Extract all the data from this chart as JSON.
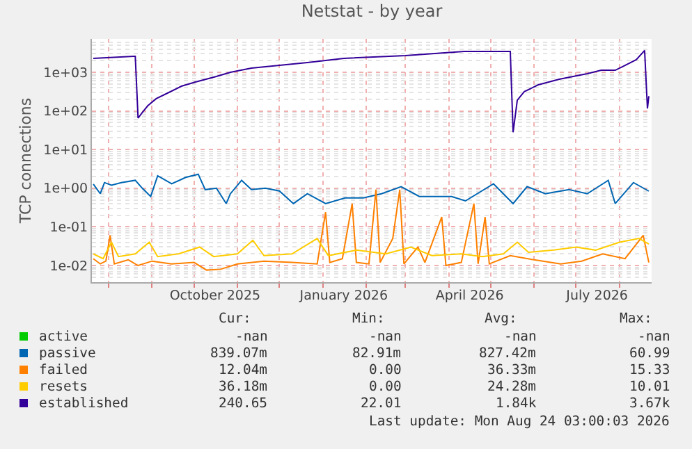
{
  "chart_data": {
    "type": "line",
    "title": "Netstat - by year",
    "ylabel": "TCP connections",
    "log": "y",
    "grid": true,
    "legend": "bottom",
    "marker": "none",
    "line_style": "solid",
    "ylim": [
      0.0037,
      7300
    ],
    "yticks": [
      {
        "value": 0.01,
        "label": "1e-02"
      },
      {
        "value": 0.1,
        "label": "1e-01"
      },
      {
        "value": 1,
        "label": "1e+00"
      },
      {
        "value": 10,
        "label": "1e+01"
      },
      {
        "value": 100,
        "label": "1e+02"
      },
      {
        "value": 1000,
        "label": "1e+03"
      }
    ],
    "xlim": [
      "2025-07-20",
      "2026-08-24"
    ],
    "xticks": [
      {
        "value": "2025-08-01",
        "label": null
      },
      {
        "value": "2025-09-01",
        "label": null
      },
      {
        "value": "2025-10-01",
        "label": null
      },
      {
        "value": "2025-10-16",
        "label": "October 2025"
      },
      {
        "value": "2025-11-01",
        "label": null
      },
      {
        "value": "2025-12-01",
        "label": null
      },
      {
        "value": "2026-01-01",
        "label": null
      },
      {
        "value": "2026-01-16",
        "label": "January 2026"
      },
      {
        "value": "2026-02-01",
        "label": null
      },
      {
        "value": "2026-03-01",
        "label": null
      },
      {
        "value": "2026-04-01",
        "label": null
      },
      {
        "value": "2026-04-16",
        "label": "April 2026"
      },
      {
        "value": "2026-05-01",
        "label": null
      },
      {
        "value": "2026-06-01",
        "label": null
      },
      {
        "value": "2026-07-01",
        "label": null
      },
      {
        "value": "2026-07-16",
        "label": "July 2026"
      },
      {
        "value": "2026-08-01",
        "label": null
      }
    ],
    "series": [
      {
        "name": "active",
        "color": "#00cc00"
      },
      {
        "name": "passive",
        "color": "#0066b3",
        "x": [
          "2025-07-21",
          "2025-07-26",
          "2025-07-29",
          "2025-08-03",
          "2025-08-10",
          "2025-08-20",
          "2025-08-25",
          "2025-08-31",
          "2025-09-05",
          "2025-09-15",
          "2025-09-25",
          "2025-10-04",
          "2025-10-09",
          "2025-10-17",
          "2025-10-24",
          "2025-10-27",
          "2025-11-04",
          "2025-11-11",
          "2025-11-21",
          "2025-12-01",
          "2025-12-11",
          "2025-12-21",
          "2026-01-03",
          "2026-01-17",
          "2026-01-30",
          "2026-02-12",
          "2026-02-26",
          "2026-03-11",
          "2026-04-03",
          "2026-04-13",
          "2026-05-03",
          "2026-05-17",
          "2026-05-27",
          "2026-06-09",
          "2026-06-26",
          "2026-07-09",
          "2026-07-24",
          "2026-07-29",
          "2026-08-11",
          "2026-08-22"
        ],
        "values": [
          1.28,
          0.72,
          1.4,
          1.2,
          1.4,
          1.6,
          1.0,
          0.61,
          2.1,
          1.3,
          1.9,
          2.3,
          0.92,
          1.0,
          0.4,
          0.72,
          1.6,
          0.92,
          1.0,
          0.85,
          0.4,
          0.72,
          0.4,
          0.56,
          0.56,
          0.72,
          1.1,
          0.61,
          0.61,
          0.47,
          1.3,
          0.4,
          1.1,
          0.72,
          0.92,
          0.72,
          1.6,
          0.4,
          1.4,
          0.84
        ]
      },
      {
        "name": "failed",
        "color": "#ff8000",
        "x": [
          "2025-07-21",
          "2025-07-26",
          "2025-07-30",
          "2025-08-02",
          "2025-08-05",
          "2025-08-15",
          "2025-08-22",
          "2025-09-01",
          "2025-09-15",
          "2025-10-01",
          "2025-10-10",
          "2025-10-20",
          "2025-11-01",
          "2025-11-20",
          "2025-12-10",
          "2025-12-28",
          "2026-01-03",
          "2026-01-06",
          "2026-01-15",
          "2026-01-22",
          "2026-01-25",
          "2026-02-03",
          "2026-02-08",
          "2026-02-11",
          "2026-02-20",
          "2026-02-25",
          "2026-02-28",
          "2026-03-10",
          "2026-03-15",
          "2026-03-27",
          "2026-03-30",
          "2026-04-10",
          "2026-04-19",
          "2026-04-22",
          "2026-04-27",
          "2026-04-30",
          "2026-05-15",
          "2026-06-01",
          "2026-06-20",
          "2026-07-05",
          "2026-07-20",
          "2026-08-05",
          "2026-08-18",
          "2026-08-22"
        ],
        "values": [
          0.015,
          0.011,
          0.013,
          0.06,
          0.011,
          0.014,
          0.01,
          0.013,
          0.011,
          0.012,
          0.0076,
          0.008,
          0.011,
          0.013,
          0.012,
          0.011,
          0.24,
          0.012,
          0.015,
          0.4,
          0.012,
          0.011,
          0.92,
          0.012,
          0.05,
          0.92,
          0.011,
          0.03,
          0.012,
          0.18,
          0.01,
          0.012,
          0.4,
          0.011,
          0.18,
          0.011,
          0.018,
          0.014,
          0.011,
          0.013,
          0.02,
          0.015,
          0.06,
          0.012
        ]
      },
      {
        "name": "resets",
        "color": "#ffcc00",
        "x": [
          "2025-07-21",
          "2025-07-28",
          "2025-08-03",
          "2025-08-08",
          "2025-08-20",
          "2025-08-30",
          "2025-09-05",
          "2025-09-20",
          "2025-10-05",
          "2025-10-15",
          "2025-11-01",
          "2025-11-12",
          "2025-11-20",
          "2025-12-10",
          "2025-12-28",
          "2026-01-05",
          "2026-01-25",
          "2026-02-15",
          "2026-03-05",
          "2026-03-20",
          "2026-04-10",
          "2026-04-25",
          "2026-05-10",
          "2026-05-20",
          "2026-05-28",
          "2026-06-15",
          "2026-07-01",
          "2026-07-15",
          "2026-08-01",
          "2026-08-15",
          "2026-08-22"
        ],
        "values": [
          0.02,
          0.015,
          0.04,
          0.017,
          0.02,
          0.04,
          0.017,
          0.02,
          0.03,
          0.017,
          0.02,
          0.045,
          0.018,
          0.02,
          0.05,
          0.018,
          0.025,
          0.02,
          0.03,
          0.018,
          0.02,
          0.017,
          0.02,
          0.04,
          0.022,
          0.025,
          0.03,
          0.025,
          0.04,
          0.05,
          0.036
        ]
      },
      {
        "name": "established",
        "color": "#330099",
        "x": [
          "2025-07-21",
          "2025-08-19",
          "2025-08-20",
          "2025-08-22",
          "2025-08-25",
          "2025-08-29",
          "2025-09-04",
          "2025-09-12",
          "2025-09-22",
          "2025-10-02",
          "2025-10-17",
          "2025-10-27",
          "2025-11-11",
          "2025-12-01",
          "2025-12-21",
          "2026-01-16",
          "2026-03-01",
          "2026-04-12",
          "2026-05-15",
          "2026-05-17",
          "2026-05-20",
          "2026-05-25",
          "2026-06-04",
          "2026-06-19",
          "2026-07-09",
          "2026-07-19",
          "2026-07-29",
          "2026-08-03",
          "2026-08-13",
          "2026-08-19",
          "2026-08-21",
          "2026-08-22"
        ],
        "values": [
          2290,
          2590,
          2590,
          65,
          91,
          137,
          208,
          289,
          437,
          560,
          780,
          1000,
          1280,
          1510,
          1780,
          2290,
          2700,
          3470,
          3470,
          28,
          190,
          315,
          475,
          660,
          920,
          1130,
          1130,
          1390,
          2110,
          3670,
          116,
          240
        ]
      }
    ],
    "annotations": [
      "Cur:",
      "Min:",
      "Avg:",
      "Max:",
      "-nan",
      "-nan",
      "-nan",
      "-nan",
      "839.07m",
      "82.91m",
      "827.42m",
      "60.99",
      "12.04m",
      "0.00",
      "36.33m",
      "15.33",
      "36.18m",
      "0.00",
      "24.28m",
      "10.01",
      "240.65",
      "22.01",
      "1.84k",
      "3.67k",
      "Last update: Mon Aug 24 03:00:03 2026"
    ]
  }
}
